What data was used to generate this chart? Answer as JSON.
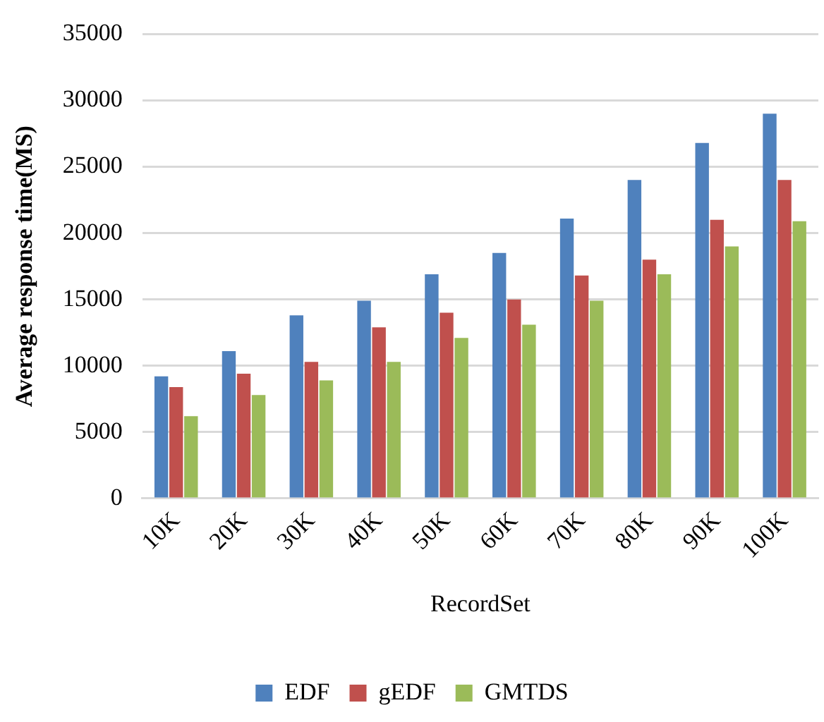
{
  "chart_data": {
    "type": "bar",
    "xlabel": "RecordSet",
    "ylabel": "Average response time(MS)",
    "categories": [
      "10K",
      "20K",
      "30K",
      "40K",
      "50K",
      "60K",
      "70K",
      "80K",
      "90K",
      "100K"
    ],
    "series": [
      {
        "name": "EDF",
        "color": "#4f81bd",
        "values": [
          9200,
          11100,
          13800,
          14900,
          16900,
          18500,
          21100,
          24000,
          26800,
          29000
        ]
      },
      {
        "name": "gEDF",
        "color": "#c0504d",
        "values": [
          8400,
          9400,
          10300,
          12900,
          14000,
          15000,
          16800,
          18000,
          21000,
          24000
        ]
      },
      {
        "name": "GMTDS",
        "color": "#9bbb59",
        "values": [
          6200,
          7800,
          8900,
          10300,
          12100,
          13100,
          14900,
          16900,
          19000,
          20900
        ]
      }
    ],
    "ylim": [
      0,
      35000
    ],
    "yticks": [
      0,
      5000,
      10000,
      15000,
      20000,
      25000,
      30000,
      35000
    ],
    "grid": "y",
    "legend": "bottom"
  }
}
